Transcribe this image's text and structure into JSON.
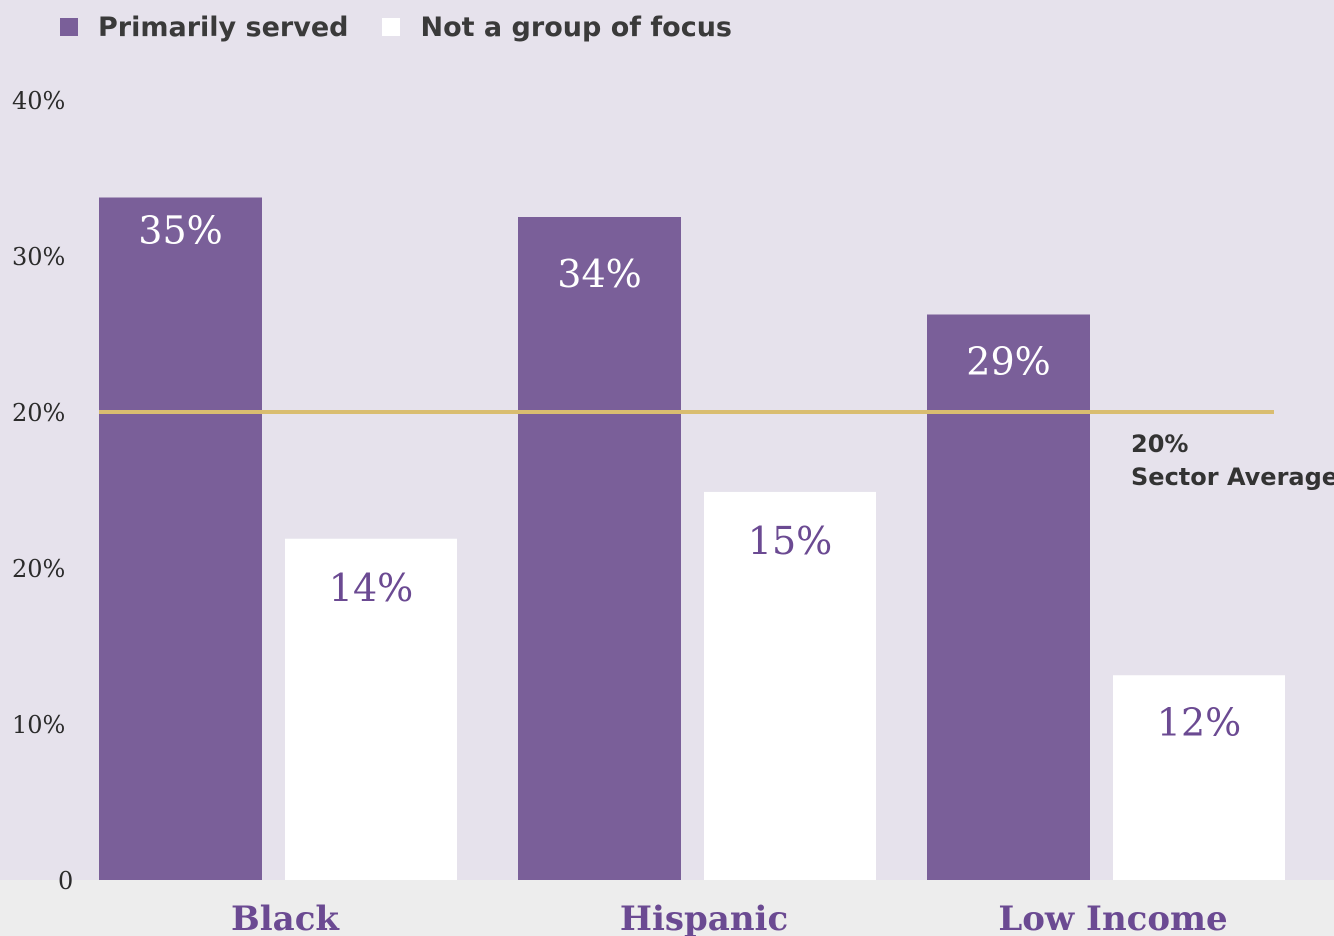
{
  "legend": {
    "primary_label": "Primarily served",
    "secondary_label": "Not a group of focus"
  },
  "chart_data": {
    "type": "bar",
    "categories": [
      "Black",
      "Hispanic",
      "Low Income"
    ],
    "series": [
      {
        "name": "Primarily served",
        "values": [
          35,
          34,
          29
        ],
        "labels": [
          "35%",
          "34%",
          "29%"
        ],
        "color": "#7a5f99"
      },
      {
        "name": "Not a group of focus",
        "values": [
          14,
          15,
          12
        ],
        "labels": [
          "14%",
          "15%",
          "12%"
        ],
        "color": "#ffffff"
      }
    ],
    "ylim": [
      0,
      40
    ],
    "y_tick_labels": [
      "0",
      "10%",
      "20%",
      "20%",
      "30%",
      "40%"
    ],
    "reference_line": {
      "value": 20,
      "label_value": "20%",
      "label_text": "Sector Average",
      "color": "#d9bd70"
    },
    "category_label_color": "#6b4a92",
    "bottom_band_color": "#ededed",
    "grid": false
  }
}
